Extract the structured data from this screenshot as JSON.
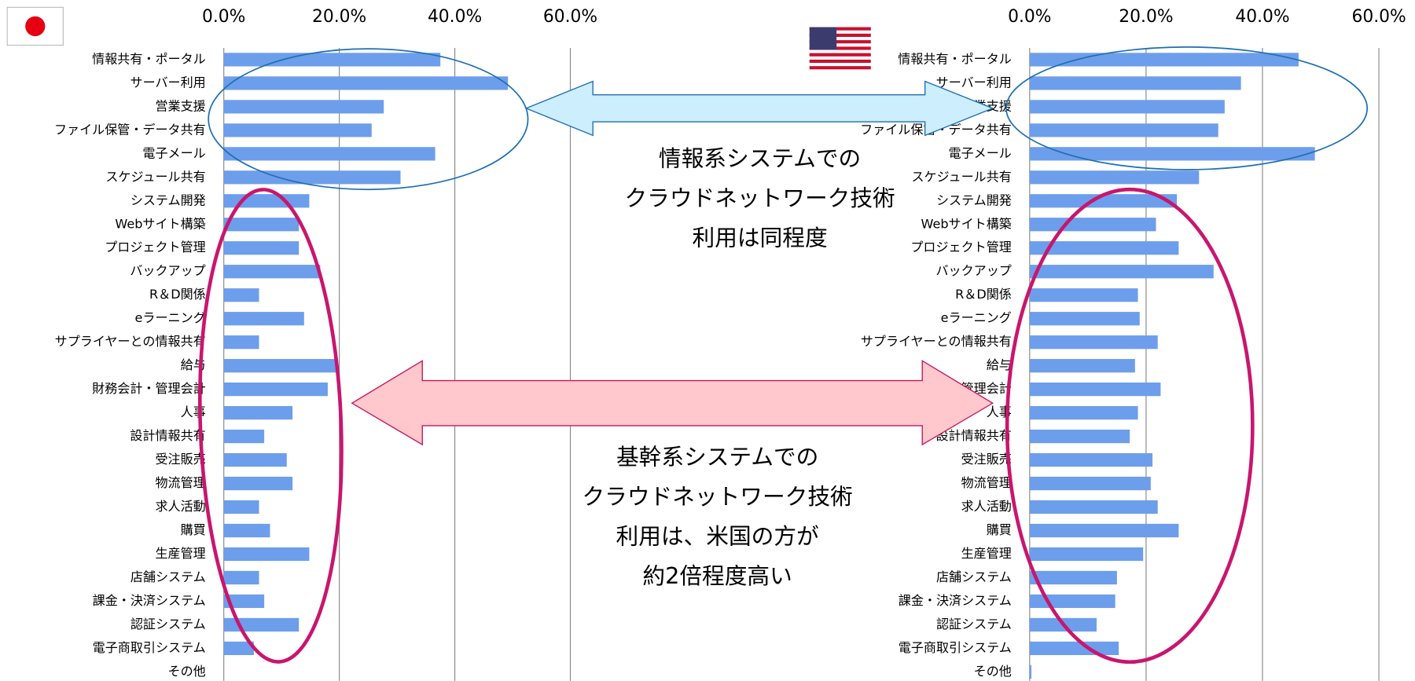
{
  "chart_data": [
    {
      "type": "bar",
      "orientation": "horizontal",
      "color": "#6d9eeb",
      "categories": [
        "情報共有・ポータル",
        "サーバー利用",
        "営業支援",
        "ファイル保管・データ共有",
        "電子メール",
        "スケジュール共有",
        "システム開発",
        "Webサイト構築",
        "プロジェクト管理",
        "バックアップ",
        "R＆D関係",
        "eラーニング",
        "サプライヤーとの情報共有",
        "給与",
        "財務会計・管理会計",
        "人事",
        "設計情報共有",
        "受注販売",
        "物流管理",
        "求人活動",
        "購買",
        "生産管理",
        "店舗システム",
        "課金・決済システム",
        "認証システム",
        "電子商取引システム",
        "その他"
      ],
      "values": [
        37.5,
        49.2,
        27.7,
        25.6,
        36.6,
        30.6,
        14.8,
        13,
        13,
        16.7,
        6.1,
        13.9,
        6.1,
        19.8,
        18,
        11.9,
        7,
        10.9,
        11.9,
        6.1,
        8,
        14.8,
        6.1,
        7,
        13,
        5.2,
        0
      ],
      "xlim": [
        0,
        60
      ],
      "xticks": [
        {
          "value": 0,
          "label": "0.0%"
        },
        {
          "value": 20,
          "label": "20.0%"
        },
        {
          "value": 40,
          "label": "40.0%"
        },
        {
          "value": 60,
          "label": "60.0%"
        }
      ],
      "grid": true
    },
    {
      "type": "bar",
      "orientation": "horizontal",
      "color": "#6d9eeb",
      "categories": [
        "情報共有・ポータル",
        "サーバー利用",
        "営業支援",
        "ファイル保管・データ共有",
        "電子メール",
        "スケジュール共有",
        "システム開発",
        "Webサイト構築",
        "プロジェクト管理",
        "バックアップ",
        "R＆D関係",
        "eラーニング",
        "サプライヤーとの情報共有",
        "給与",
        "財務会計・管理会計",
        "人事",
        "設計情報共有",
        "受注販売",
        "物流管理",
        "求人活動",
        "購買",
        "生産管理",
        "店舗システム",
        "課金・決済システム",
        "認証システム",
        "電子商取引システム",
        "その他"
      ],
      "values": [
        46.2,
        36.3,
        33.5,
        32.4,
        49,
        29.1,
        25.3,
        21.7,
        25.6,
        31.6,
        18.6,
        18.9,
        22,
        18.1,
        22.5,
        18.6,
        17.2,
        21.1,
        20.8,
        22,
        25.6,
        19.5,
        15,
        14.7,
        11.5,
        15.3,
        0.3
      ],
      "xlim": [
        0,
        60
      ],
      "xticks": [
        {
          "value": 0,
          "label": "0.0%"
        },
        {
          "value": 20,
          "label": "20.0%"
        },
        {
          "value": 40,
          "label": "40.0%"
        },
        {
          "value": 60,
          "label": "60.0%"
        }
      ],
      "grid": true
    }
  ],
  "annotations": [
    [
      "情報系システムでの",
      "クラウドネットワーク技術",
      "利用は同程度"
    ],
    [
      "基幹系システムでの",
      "クラウドネットワーク技術",
      "利用は、米国の方が",
      "約2倍程度高い"
    ]
  ]
}
